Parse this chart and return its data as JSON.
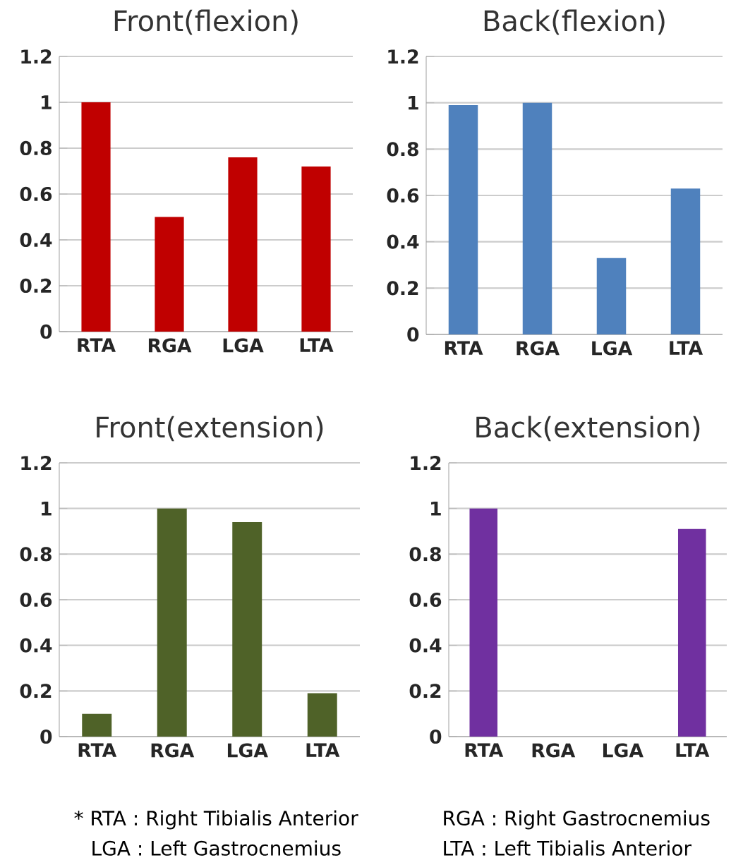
{
  "chart_data": [
    {
      "type": "bar",
      "title": "Front(flexion)",
      "categories": [
        "RTA",
        "RGA",
        "LGA",
        "LTA"
      ],
      "values": [
        1.0,
        0.5,
        0.76,
        0.72
      ],
      "color": "#c00000",
      "ylim": [
        0,
        1.2
      ],
      "yticks": [
        0,
        0.2,
        0.4,
        0.6,
        0.8,
        1,
        1.2
      ],
      "grid": "y"
    },
    {
      "type": "bar",
      "title": "Back(flexion)",
      "categories": [
        "RTA",
        "RGA",
        "LGA",
        "LTA"
      ],
      "values": [
        0.99,
        1.0,
        0.33,
        0.63
      ],
      "color": "#4f81bd",
      "ylim": [
        0,
        1.2
      ],
      "yticks": [
        0,
        0.2,
        0.4,
        0.6,
        0.8,
        1,
        1.2
      ],
      "grid": "y"
    },
    {
      "type": "bar",
      "title": "Front(extension)",
      "categories": [
        "RTA",
        "RGA",
        "LGA",
        "LTA"
      ],
      "values": [
        0.1,
        1.0,
        0.94,
        0.19
      ],
      "color": "#4f6228",
      "ylim": [
        0,
        1.2
      ],
      "yticks": [
        0,
        0.2,
        0.4,
        0.6,
        0.8,
        1,
        1.2
      ],
      "grid": "y",
      "annotations": [
        "* RTA : Right Tibialis Anterior",
        "LGA : Left Gastrocnemius"
      ]
    },
    {
      "type": "bar",
      "title": "Back(extension)",
      "categories": [
        "RTA",
        "RGA",
        "LGA",
        "LTA"
      ],
      "values": [
        1.0,
        0,
        0,
        0.91
      ],
      "color": "#7030a0",
      "ylim": [
        0,
        1.2
      ],
      "yticks": [
        0,
        0.2,
        0.4,
        0.6,
        0.8,
        1,
        1.2
      ],
      "grid": "y",
      "annotations": [
        "RGA : Right Gastrocnemius",
        "LTA : Left Tibialis Anterior"
      ]
    }
  ]
}
